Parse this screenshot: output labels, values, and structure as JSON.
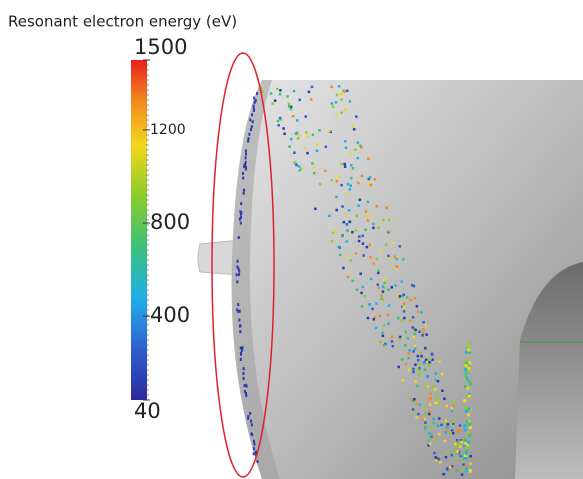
{
  "colorbar": {
    "title": "Resonant electron energy (eV)",
    "range": [
      40,
      1500
    ],
    "ticks": [
      40,
      400,
      800,
      1200,
      1500
    ]
  }
}
